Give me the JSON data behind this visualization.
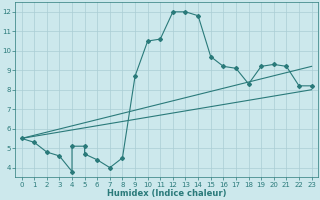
{
  "xlabel": "Humidex (Indice chaleur)",
  "bg_color": "#cce8ec",
  "line_color": "#2a7a7a",
  "grid_color": "#aacdd4",
  "xlim": [
    -0.5,
    23.5
  ],
  "ylim": [
    3.5,
    12.5
  ],
  "xticks": [
    0,
    1,
    2,
    3,
    4,
    5,
    6,
    7,
    8,
    9,
    10,
    11,
    12,
    13,
    14,
    15,
    16,
    17,
    18,
    19,
    20,
    21,
    22,
    23
  ],
  "yticks": [
    4,
    5,
    6,
    7,
    8,
    9,
    10,
    11,
    12
  ],
  "line1_x": [
    0,
    1,
    2,
    3,
    4,
    4,
    5,
    5,
    6,
    7,
    8,
    9,
    10,
    11,
    12,
    13,
    14,
    15,
    16,
    17,
    18,
    19,
    20,
    21,
    22,
    23
  ],
  "line1_y": [
    5.5,
    5.3,
    4.8,
    4.6,
    3.8,
    5.1,
    5.1,
    4.7,
    4.4,
    4.0,
    4.5,
    8.7,
    10.5,
    10.6,
    12.0,
    12.0,
    11.8,
    9.7,
    9.2,
    9.1,
    8.3,
    9.2,
    9.3,
    9.2,
    8.2,
    8.2
  ],
  "line2_x": [
    0,
    23
  ],
  "line2_y": [
    5.5,
    9.2
  ],
  "line3_x": [
    0,
    23
  ],
  "line3_y": [
    5.5,
    8.0
  ],
  "fontsize_label": 6,
  "fontsize_tick": 5
}
